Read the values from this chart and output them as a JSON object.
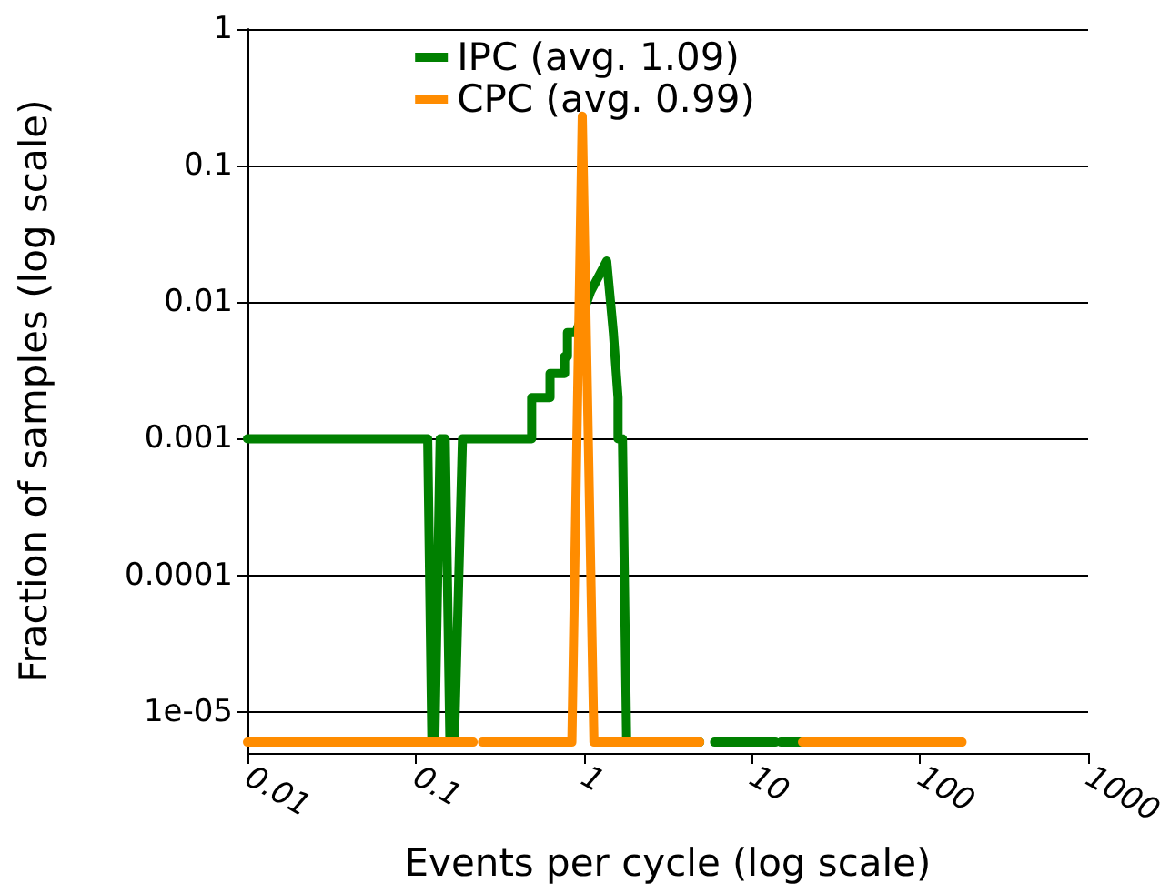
{
  "chart_data": {
    "type": "line",
    "xlabel": "Events per cycle (log scale)",
    "ylabel": "Fraction of samples (log scale)",
    "log": "xy",
    "grid": "y",
    "legend": "top",
    "marker": "none",
    "line_style": "solid",
    "xlim": [
      0.01,
      1000
    ],
    "xticks": [
      0.01,
      0.1,
      1,
      10,
      100,
      1000
    ],
    "ylim": [
      5e-06,
      1
    ],
    "yticks": [
      1,
      0.1,
      0.01,
      0.001,
      0.0001,
      {
        "value": 1e-05,
        "label": "1e-05"
      }
    ],
    "series": [
      {
        "name": "IPC (avg. 1.09)",
        "color": "#008000",
        "x": [
          0.01,
          0.118,
          0.125,
          0.13,
          0.14,
          0.15,
          0.16,
          0.17,
          0.19,
          0.49,
          0.49,
          0.63,
          0.63,
          0.77,
          0.77,
          0.8,
          0.8,
          0.9,
          1.1,
          1.37,
          1.5,
          1.6,
          1.6,
          1.7,
          1.8,
          4.9,
          5.5,
          6.0,
          13.8,
          14.2,
          14.9,
          20
        ],
        "values": [
          0.001,
          0.001,
          6e-06,
          6e-06,
          0.001,
          0.001,
          6e-06,
          6e-06,
          0.001,
          0.001,
          0.002,
          0.002,
          0.003,
          0.003,
          0.004,
          0.004,
          0.006,
          0.006,
          0.012,
          0.02,
          0.006,
          0.002,
          0.001,
          0.001,
          6e-06,
          6e-06,
          null,
          6e-06,
          6e-06,
          null,
          6e-06,
          6e-06
        ]
      },
      {
        "name": "CPC (avg. 0.99)",
        "color": "#ff8c00",
        "x": [
          0.01,
          0.22,
          0.235,
          0.25,
          0.85,
          0.98,
          1.15,
          4.9,
          5.5,
          20,
          178
        ],
        "values": [
          6e-06,
          6e-06,
          null,
          6e-06,
          6e-06,
          0.23,
          6e-06,
          6e-06,
          null,
          6e-06,
          6e-06
        ]
      }
    ]
  }
}
